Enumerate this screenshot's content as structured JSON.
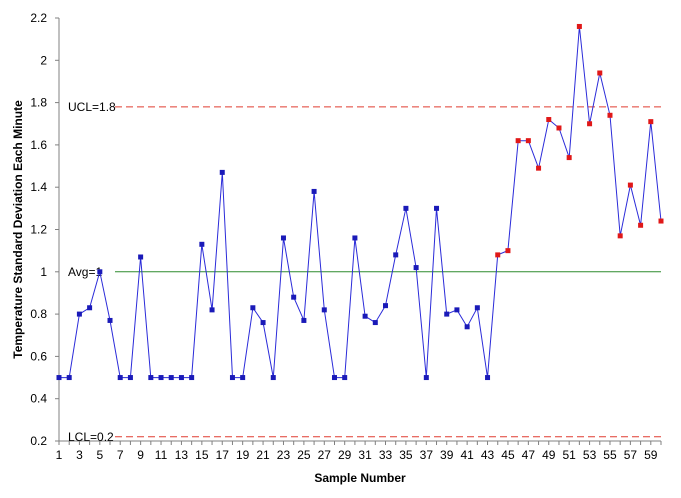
{
  "chart_data": {
    "type": "line",
    "title": "",
    "xlabel": "Sample Number",
    "ylabel": "Temperature Standard Deviation Each Minute",
    "xlim": [
      1,
      60
    ],
    "ylim": [
      0.2,
      2.2
    ],
    "x_ticks": [
      "1",
      "3",
      "5",
      "7",
      "9",
      "11",
      "13",
      "15",
      "17",
      "19",
      "21",
      "23",
      "25",
      "27",
      "29",
      "31",
      "33",
      "35",
      "37",
      "39",
      "41",
      "43",
      "45",
      "47",
      "49",
      "51",
      "53",
      "55",
      "57",
      "59"
    ],
    "y_ticks": [
      "0.2",
      "0.4",
      "0.6",
      "0.8",
      "1",
      "1.2",
      "1.4",
      "1.6",
      "1.8",
      "2",
      "2.2"
    ],
    "grid": false,
    "reference_lines": [
      {
        "label": "UCL=1.8",
        "value": 1.78,
        "style": "dashed",
        "color": "#e03c31"
      },
      {
        "label": "Avg=1",
        "value": 1.0,
        "style": "solid",
        "color": "#2e8b2e"
      },
      {
        "label": "LCL=0.2",
        "value": 0.22,
        "style": "dashed",
        "color": "#e03c31"
      }
    ],
    "series": [
      {
        "line_color": "#2b2bd9",
        "normal_marker_color": "#1a1ab8",
        "signal_marker_color": "#e01818",
        "signal_from_x": 44,
        "x": [
          1,
          2,
          3,
          4,
          5,
          6,
          7,
          8,
          9,
          10,
          11,
          12,
          13,
          14,
          15,
          16,
          17,
          18,
          19,
          20,
          21,
          22,
          23,
          24,
          25,
          26,
          27,
          28,
          29,
          30,
          31,
          32,
          33,
          34,
          35,
          36,
          37,
          38,
          39,
          40,
          41,
          42,
          43,
          44,
          45,
          46,
          47,
          48,
          49,
          50,
          51,
          52,
          53,
          54,
          55,
          56,
          57,
          58,
          59,
          60
        ],
        "values": [
          0.5,
          0.5,
          0.8,
          0.83,
          1.0,
          0.77,
          0.5,
          0.5,
          1.07,
          0.5,
          0.5,
          0.5,
          0.5,
          0.5,
          1.13,
          0.82,
          1.47,
          0.5,
          0.5,
          0.83,
          0.76,
          0.5,
          1.16,
          0.88,
          0.77,
          1.38,
          0.82,
          0.5,
          0.5,
          1.16,
          0.79,
          0.76,
          0.84,
          1.08,
          1.3,
          1.02,
          0.5,
          1.3,
          0.8,
          0.82,
          0.74,
          0.83,
          0.5,
          1.08,
          1.1,
          1.62,
          1.62,
          1.49,
          1.72,
          1.68,
          1.54,
          2.16,
          1.7,
          1.94,
          1.74,
          1.17,
          1.41,
          1.22,
          1.71,
          1.24
        ]
      }
    ]
  }
}
